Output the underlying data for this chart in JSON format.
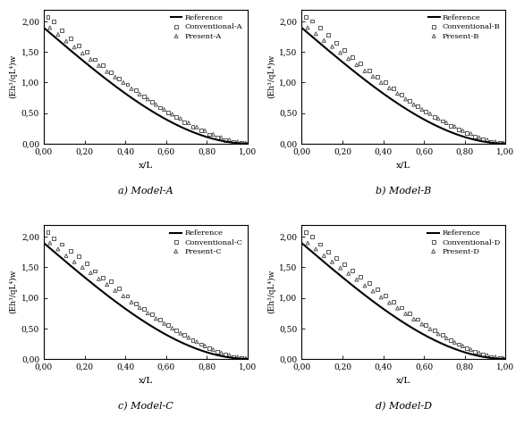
{
  "subplots": [
    {
      "label": "a) Model-A",
      "conv_label": "Conventional-A",
      "pres_label": "Present-A"
    },
    {
      "label": "b) Model-B",
      "conv_label": "Conventional-B",
      "pres_label": "Present-B"
    },
    {
      "label": "c) Model-C",
      "conv_label": "Conventional-C",
      "pres_label": "Present-C"
    },
    {
      "label": "d) Model-D",
      "conv_label": "Conventional-D",
      "pres_label": "Present-D"
    }
  ],
  "xlabel": "x/L",
  "ylabel": "(Eh³/qL⁴)w",
  "xlim": [
    0.0,
    1.0
  ],
  "ylim": [
    0.0,
    2.2
  ],
  "xticks": [
    0.0,
    0.2,
    0.4,
    0.6,
    0.8,
    1.0
  ],
  "yticks": [
    0.0,
    0.5,
    1.0,
    1.5,
    2.0
  ],
  "ref_color": "#000000",
  "scatter_color": "#555555",
  "background_color": "#ffffff",
  "conv_x": [
    0.02,
    0.05,
    0.09,
    0.13,
    0.17,
    0.21,
    0.25,
    0.29,
    0.33,
    0.37,
    0.41,
    0.45,
    0.49,
    0.53,
    0.57,
    0.61,
    0.65,
    0.69,
    0.73,
    0.77,
    0.81,
    0.85,
    0.89,
    0.93,
    0.97
  ],
  "pres_x": [
    0.03,
    0.07,
    0.11,
    0.15,
    0.19,
    0.23,
    0.27,
    0.31,
    0.35,
    0.39,
    0.43,
    0.47,
    0.51,
    0.55,
    0.59,
    0.63,
    0.67,
    0.71,
    0.75,
    0.79,
    0.83,
    0.87,
    0.91,
    0.95,
    0.99
  ],
  "conv_scatter_A": [
    2.08,
    2.0,
    1.85,
    1.72,
    1.61,
    1.5,
    1.38,
    1.28,
    1.17,
    1.07,
    0.97,
    0.87,
    0.77,
    0.68,
    0.59,
    0.51,
    0.43,
    0.35,
    0.28,
    0.21,
    0.15,
    0.1,
    0.06,
    0.03,
    0.01
  ],
  "pres_scatter_A": [
    1.9,
    1.79,
    1.68,
    1.58,
    1.48,
    1.38,
    1.28,
    1.18,
    1.09,
    1.0,
    0.9,
    0.81,
    0.73,
    0.64,
    0.56,
    0.48,
    0.41,
    0.34,
    0.27,
    0.21,
    0.15,
    0.1,
    0.06,
    0.03,
    0.01
  ],
  "conv_scatter_B": [
    2.08,
    2.01,
    1.9,
    1.78,
    1.65,
    1.53,
    1.42,
    1.31,
    1.2,
    1.1,
    1.0,
    0.9,
    0.8,
    0.7,
    0.61,
    0.52,
    0.44,
    0.37,
    0.29,
    0.23,
    0.17,
    0.11,
    0.07,
    0.03,
    0.01
  ],
  "pres_scatter_B": [
    1.9,
    1.8,
    1.69,
    1.59,
    1.49,
    1.39,
    1.29,
    1.19,
    1.1,
    1.0,
    0.91,
    0.82,
    0.73,
    0.64,
    0.56,
    0.49,
    0.41,
    0.34,
    0.28,
    0.21,
    0.16,
    0.1,
    0.06,
    0.03,
    0.01
  ],
  "conv_scatter_C": [
    2.08,
    1.98,
    1.88,
    1.77,
    1.68,
    1.57,
    1.44,
    1.33,
    1.27,
    1.15,
    1.03,
    0.91,
    0.82,
    0.73,
    0.64,
    0.55,
    0.47,
    0.39,
    0.31,
    0.24,
    0.17,
    0.12,
    0.07,
    0.03,
    0.01
  ],
  "pres_scatter_C": [
    1.9,
    1.8,
    1.69,
    1.59,
    1.5,
    1.41,
    1.31,
    1.22,
    1.12,
    1.03,
    0.93,
    0.84,
    0.75,
    0.66,
    0.58,
    0.5,
    0.42,
    0.35,
    0.28,
    0.21,
    0.15,
    0.1,
    0.06,
    0.03,
    0.01
  ],
  "conv_scatter_D": [
    2.08,
    2.0,
    1.88,
    1.76,
    1.65,
    1.55,
    1.45,
    1.34,
    1.24,
    1.14,
    1.04,
    0.94,
    0.84,
    0.74,
    0.65,
    0.56,
    0.47,
    0.39,
    0.31,
    0.24,
    0.18,
    0.12,
    0.07,
    0.03,
    0.01
  ],
  "pres_scatter_D": [
    1.9,
    1.8,
    1.69,
    1.59,
    1.49,
    1.4,
    1.3,
    1.2,
    1.11,
    1.01,
    0.92,
    0.83,
    0.74,
    0.65,
    0.57,
    0.49,
    0.41,
    0.34,
    0.27,
    0.21,
    0.15,
    0.1,
    0.06,
    0.03,
    0.01
  ]
}
